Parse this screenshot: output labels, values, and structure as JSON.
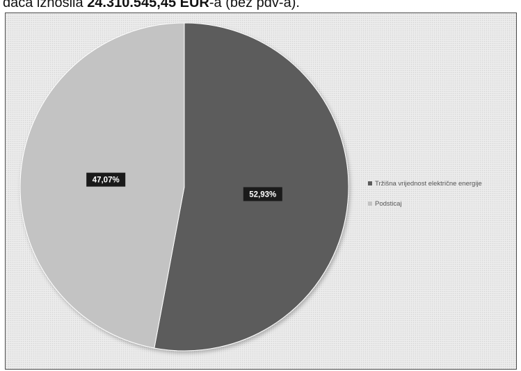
{
  "caption": {
    "prefix": "đača iznosila ",
    "amount": "24.310.545,45 EUR",
    "suffix": "-a (bez pdv-a)."
  },
  "chart_data": {
    "type": "pie",
    "title": "",
    "legend_position": "right",
    "start_angle_deg": 0,
    "direction": "clockwise",
    "slices": [
      {
        "name": "Tržišna vrijednost električne energije",
        "value": 52.93,
        "label": "52,93%",
        "color": "#5b5b5b"
      },
      {
        "name": "Podsticaj",
        "value": 47.07,
        "label": "47,07%",
        "color": "#c3c3c3"
      }
    ]
  }
}
